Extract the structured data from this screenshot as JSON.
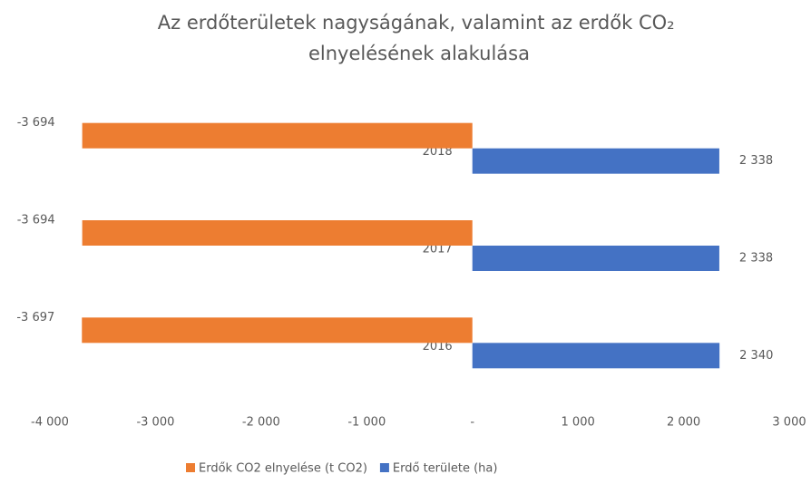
{
  "chart_data": {
    "type": "barh",
    "title": "Az erdőterületek nagyságának, valamint az erdők CO₂ elnyelésének alakulása",
    "categories": [
      "2016",
      "2017",
      "2018"
    ],
    "series": [
      {
        "name": "Erdők CO2 elnyelése (t CO2)",
        "color": "#ed7d31",
        "values": [
          -3697,
          -3694,
          -3694
        ],
        "value_labels": [
          "-3 697",
          "-3 694",
          "-3 694"
        ]
      },
      {
        "name": "Erdő területe (ha)",
        "color": "#4472c4",
        "values": [
          2340,
          2338,
          2338
        ],
        "value_labels": [
          "2 340",
          "2 338",
          "2 338"
        ]
      }
    ],
    "xlim": [
      -4000,
      3000
    ],
    "xticks": [
      {
        "value": -4000,
        "label": "-4 000"
      },
      {
        "value": -3000,
        "label": "-3 000"
      },
      {
        "value": -2000,
        "label": "-2 000"
      },
      {
        "value": -1000,
        "label": "-1 000"
      },
      {
        "value": 0,
        "label": "-"
      },
      {
        "value": 1000,
        "label": "1 000"
      },
      {
        "value": 2000,
        "label": "2 000"
      },
      {
        "value": 3000,
        "label": "3 000"
      }
    ],
    "legend": "bottom"
  }
}
